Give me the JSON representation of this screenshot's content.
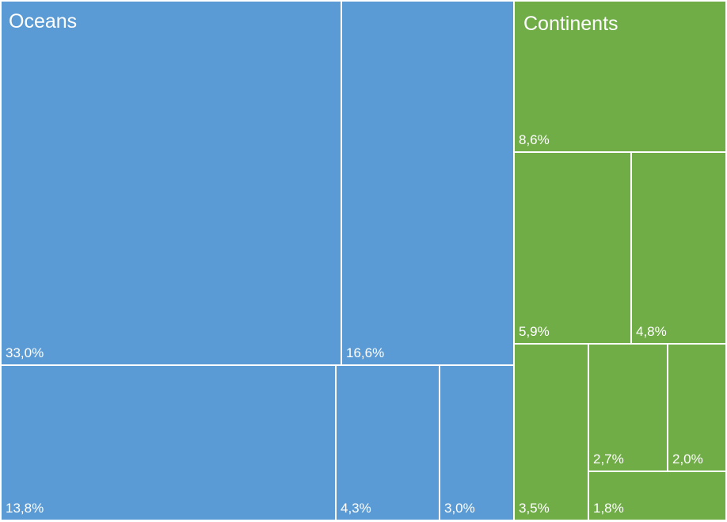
{
  "colors": {
    "oceans": "#5B9BD5",
    "continents": "#70AD47",
    "text": "#FFFFFF",
    "border": "#FFFFFF"
  },
  "chart_data": {
    "type": "treemap",
    "title": "",
    "groups": [
      {
        "name": "Oceans",
        "color": "#5B9BD5",
        "items": [
          {
            "label": "33,0%",
            "value": 33.0
          },
          {
            "label": "16,6%",
            "value": 16.6
          },
          {
            "label": "13,8%",
            "value": 13.8
          },
          {
            "label": "4,3%",
            "value": 4.3
          },
          {
            "label": "3,0%",
            "value": 3.0
          }
        ]
      },
      {
        "name": "Continents",
        "color": "#70AD47",
        "items": [
          {
            "label": "8,6%",
            "value": 8.6
          },
          {
            "label": "5,9%",
            "value": 5.9
          },
          {
            "label": "4,8%",
            "value": 4.8
          },
          {
            "label": "3,5%",
            "value": 3.5
          },
          {
            "label": "2,7%",
            "value": 2.7
          },
          {
            "label": "2,0%",
            "value": 2.0
          },
          {
            "label": "1,8%",
            "value": 1.8
          }
        ]
      }
    ]
  }
}
